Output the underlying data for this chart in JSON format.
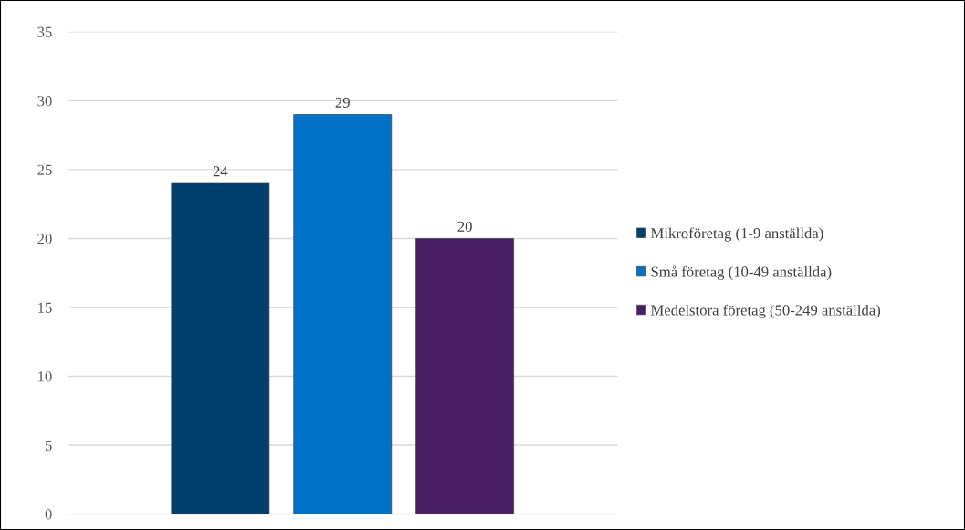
{
  "chart_data": {
    "type": "bar",
    "categories": [
      null
    ],
    "series": [
      {
        "name": "Mikroföretag (1-9 anställda)",
        "color": "#003f6e",
        "values": [
          24
        ]
      },
      {
        "name": "Små företag (10-49 anställda)",
        "color": "#0072c6",
        "values": [
          29
        ]
      },
      {
        "name": "Medelstora företag (50-249 anställda)",
        "color": "#4a2065",
        "values": [
          20
        ]
      }
    ],
    "ylim": [
      0,
      35
    ],
    "yticks": [
      0,
      5,
      10,
      15,
      20,
      25,
      30,
      35
    ],
    "grid": "y",
    "legend": "right",
    "data_labels": true
  }
}
